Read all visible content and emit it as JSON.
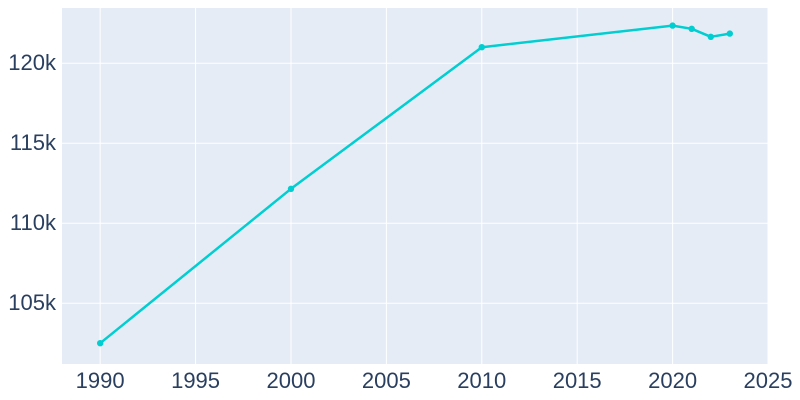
{
  "chart_data": {
    "type": "line",
    "series": [
      {
        "name": "population",
        "x": [
          1990,
          2000,
          2010,
          2020,
          2021,
          2022,
          2023
        ],
        "y": [
          102500,
          112150,
          121000,
          122350,
          122150,
          121650,
          121850
        ]
      }
    ],
    "title": "",
    "xlabel": "",
    "ylabel": "",
    "x_range": [
      1988,
      2025
    ],
    "y_range": [
      101200,
      123450
    ],
    "x_ticks": [
      {
        "value": 1990,
        "label": "1990"
      },
      {
        "value": 1995,
        "label": "1995"
      },
      {
        "value": 2000,
        "label": "2000"
      },
      {
        "value": 2005,
        "label": "2005"
      },
      {
        "value": 2010,
        "label": "2010"
      },
      {
        "value": 2015,
        "label": "2015"
      },
      {
        "value": 2020,
        "label": "2020"
      },
      {
        "value": 2025,
        "label": "2025"
      }
    ],
    "y_ticks": [
      {
        "value": 105000,
        "label": "105k"
      },
      {
        "value": 110000,
        "label": "110k"
      },
      {
        "value": 115000,
        "label": "115k"
      },
      {
        "value": 120000,
        "label": "120k"
      }
    ],
    "grid": true,
    "legend": false,
    "colors": {
      "line": "#00CED1",
      "marker": "#00CED1",
      "plot_background": "#E5ECF6",
      "gridline": "#FFFFFF",
      "tick_label": "#2a3f5f",
      "page_background": "#FFFFFF"
    },
    "marker_shape": "circle",
    "line_width": 2.5,
    "marker_radius": 3.2,
    "tick_font_size": 22
  }
}
